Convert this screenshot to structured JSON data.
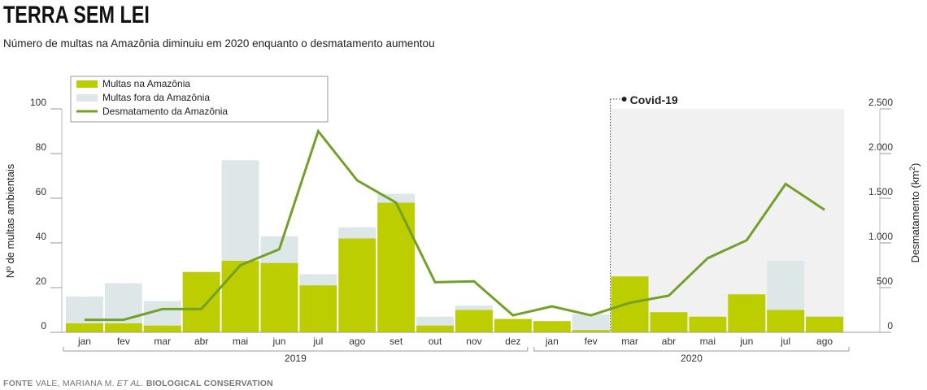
{
  "header": {
    "title": "TERRA SEM LEI",
    "subtitle": "Número de multas na Amazônia diminuiu em 2020 enquanto o desmatamento aumentou"
  },
  "source": {
    "label": "FONTE",
    "text_plain": "VALE, MARIANA M.",
    "text_italic": "ET AL.",
    "text_bold": "BIOLOGICAL CONSERVATION"
  },
  "annotation": {
    "label": "Covid-19",
    "start_index": 14
  },
  "colors": {
    "amazon": "#bccd00",
    "outside": "#dde7e8",
    "line": "#73a027",
    "shade": "#f1f1f1",
    "axis": "#999999"
  },
  "chart_data": {
    "type": "bar+line",
    "categories": [
      "jan",
      "fev",
      "mar",
      "abr",
      "mai",
      "jun",
      "jul",
      "ago",
      "set",
      "out",
      "nov",
      "dez",
      "jan",
      "fev",
      "mar",
      "abr",
      "mai",
      "jun",
      "jul",
      "ago"
    ],
    "year_groups": [
      {
        "label": "2019",
        "start": 0,
        "end": 11
      },
      {
        "label": "2020",
        "start": 12,
        "end": 19
      }
    ],
    "series": [
      {
        "name": "Multas na Amazônia",
        "type": "bar",
        "axis": "left",
        "values": [
          4,
          4,
          3,
          27,
          32,
          31,
          21,
          42,
          58,
          3,
          10,
          6,
          5,
          1,
          25,
          9,
          7,
          17,
          10,
          7
        ]
      },
      {
        "name": "Multas fora da Amazônia",
        "type": "bar-total",
        "axis": "left",
        "values": [
          16,
          22,
          14,
          27,
          77,
          43,
          26,
          47,
          62,
          7,
          12,
          6,
          5,
          8,
          25,
          9,
          7,
          17,
          32,
          7
        ]
      },
      {
        "name": "Desmatamento da Amazônia",
        "type": "line",
        "axis": "right",
        "values": [
          140,
          140,
          260,
          260,
          750,
          930,
          2250,
          1700,
          1450,
          560,
          570,
          190,
          290,
          190,
          330,
          410,
          830,
          1030,
          1660,
          1370
        ]
      }
    ],
    "y_left": {
      "label": "Nº de multas ambientais",
      "min": 0,
      "max": 100,
      "ticks": [
        0,
        20,
        40,
        60,
        80,
        100
      ],
      "tick_labels": [
        "0",
        "20",
        "40",
        "60",
        "80",
        "100"
      ]
    },
    "y_right": {
      "label_main": "Desmatamento (km",
      "label_sup": "2",
      "label_end": ")",
      "min": 0,
      "max": 2500,
      "ticks": [
        0,
        500,
        1000,
        1500,
        2000,
        2500
      ],
      "tick_labels": [
        "0",
        "500",
        "1.000",
        "1.500",
        "2.000",
        "2.500"
      ]
    },
    "legend_position": "top-left"
  }
}
